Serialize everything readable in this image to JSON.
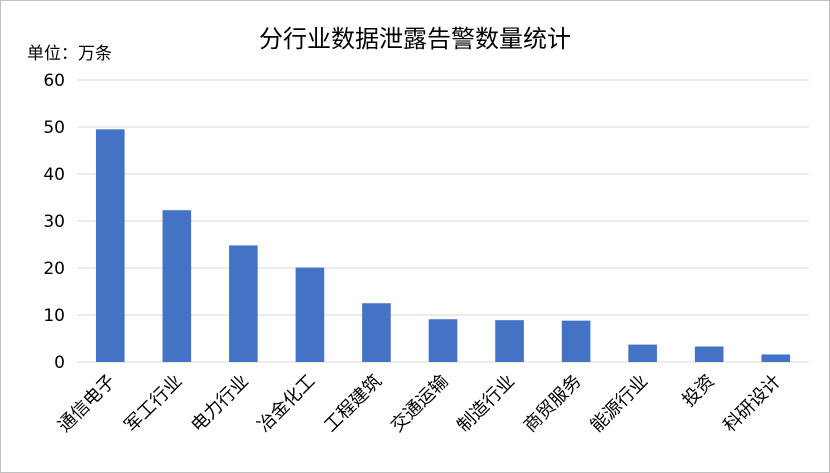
{
  "chart_data": {
    "type": "bar",
    "title": "分行业数据泄露告警数量统计",
    "unit_label": "单位：万条",
    "categories": [
      "通信电子",
      "军工行业",
      "电力行业",
      "冶金化工",
      "工程建筑",
      "交通运输",
      "制造行业",
      "商贸服务",
      "能源行业",
      "投资",
      "科研设计"
    ],
    "values": [
      49.5,
      32.3,
      24.8,
      20.1,
      12.5,
      9.1,
      8.9,
      8.8,
      3.7,
      3.3,
      1.6
    ],
    "ylim": [
      0,
      60
    ],
    "yticks": [
      0,
      10,
      20,
      30,
      40,
      50,
      60
    ],
    "grid": true,
    "bar_color": "#4472C4",
    "grid_color": "#d9d9d9"
  }
}
